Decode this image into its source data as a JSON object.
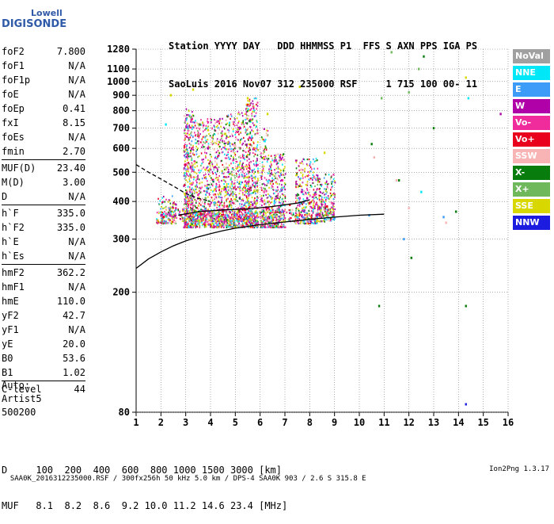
{
  "logo": {
    "line1": "Lowell",
    "line2": "DIGISONDE"
  },
  "header": {
    "line1": "Station YYYY DAY   DDD HHMMSS P1  FFS S AXN PPS IGA PS",
    "line2": "SaoLuis 2016 Nov07 312 235000 RSF     1 715 100 00- 11"
  },
  "params": {
    "group1": [
      {
        "k": "foF2",
        "v": "7.800"
      },
      {
        "k": "foF1",
        "v": "N/A"
      },
      {
        "k": "foF1p",
        "v": "N/A"
      },
      {
        "k": "foE",
        "v": "N/A"
      },
      {
        "k": "foEp",
        "v": "0.41"
      },
      {
        "k": "fxI",
        "v": "8.15"
      },
      {
        "k": "foEs",
        "v": "N/A"
      },
      {
        "k": "fmin",
        "v": "2.70"
      }
    ],
    "group2": [
      {
        "k": "MUF(D)",
        "v": "23.40"
      },
      {
        "k": "M(D)",
        "v": "3.00"
      },
      {
        "k": "D",
        "v": "N/A"
      }
    ],
    "group3": [
      {
        "k": "h`F",
        "v": "335.0"
      },
      {
        "k": "h`F2",
        "v": "335.0"
      },
      {
        "k": "h`E",
        "v": "N/A"
      },
      {
        "k": "h`Es",
        "v": "N/A"
      }
    ],
    "group4": [
      {
        "k": "hmF2",
        "v": "362.2"
      },
      {
        "k": "hmF1",
        "v": "N/A"
      },
      {
        "k": "hmE",
        "v": "110.0"
      },
      {
        "k": "yF2",
        "v": "42.7"
      },
      {
        "k": "yF1",
        "v": "N/A"
      },
      {
        "k": "yE",
        "v": "20.0"
      },
      {
        "k": "B0",
        "v": "53.6"
      },
      {
        "k": "B1",
        "v": "1.02"
      }
    ],
    "group5": [
      {
        "k": "C-level",
        "v": "44"
      }
    ]
  },
  "auto": {
    "line1": "Auto:",
    "line2": "Artist5",
    "line3": "500200"
  },
  "bottom": {
    "d_line": "D     100  200  400  600  800 1000 1500 3000 [km]",
    "muf_line": "MUF   8.1  8.2  8.6  9.2 10.0 11.2 14.6 23.4 [MHz]"
  },
  "footer": {
    "text": "SAA0K_2016312235000.RSF / 300fx256h 50 kHz 5.0 km / DPS-4 SAA0K 903 / 2.6 S 315.8 E",
    "version": "Ion2Png 1.3.17"
  },
  "legend": [
    {
      "label": "NoVal",
      "bg": "#a0a0a0",
      "fg": "#ffffff"
    },
    {
      "label": "NNE",
      "bg": "#00e8f8",
      "fg": "#ffffff"
    },
    {
      "label": "E",
      "bg": "#3c9cf8",
      "fg": "#ffffff"
    },
    {
      "label": "W",
      "bg": "#b000a8",
      "fg": "#ffffff"
    },
    {
      "label": "Vo-",
      "bg": "#f02c9c",
      "fg": "#ffffff"
    },
    {
      "label": "Vo+",
      "bg": "#e8001c",
      "fg": "#ffffff"
    },
    {
      "label": "SSW",
      "bg": "#f8b4b4",
      "fg": "#ffffff"
    },
    {
      "label": "X-",
      "bg": "#087c0c",
      "fg": "#ffffff"
    },
    {
      "label": "X+",
      "bg": "#70b85c",
      "fg": "#ffffff"
    },
    {
      "label": "SSE",
      "bg": "#d8d800",
      "fg": "#ffffff"
    },
    {
      "label": "NNW",
      "bg": "#1c1ce0",
      "fg": "#ffffff"
    }
  ],
  "chart_data": {
    "type": "scatter",
    "xlabel": "",
    "ylabel": "",
    "x_ticks": [
      "1",
      "2",
      "3",
      "4",
      "5",
      "6",
      "7",
      "8",
      "9",
      "10",
      "11",
      "12",
      "13",
      "14",
      "15",
      "16"
    ],
    "y_ticks": [
      "80",
      "200",
      "300",
      "400",
      "500",
      "600",
      "700",
      "800",
      "900",
      "1000",
      "1100",
      "1280"
    ],
    "xlim": [
      1,
      16
    ],
    "ylim": [
      80,
      1280
    ],
    "y_scale": "log",
    "grid": true,
    "series": [
      {
        "name": "NoVal",
        "points": []
      },
      {
        "name": "NNE",
        "points": [
          [
            2.2,
            720
          ],
          [
            3.4,
            360
          ],
          [
            12.5,
            430
          ],
          [
            14.4,
            880
          ]
        ]
      },
      {
        "name": "E",
        "points": [
          [
            3.3,
            350
          ],
          [
            5.5,
            352
          ],
          [
            8.3,
            355
          ],
          [
            8.6,
            350
          ],
          [
            9.0,
            352
          ],
          [
            10.4,
            360
          ],
          [
            11.8,
            300
          ],
          [
            13.4,
            355
          ]
        ]
      },
      {
        "name": "W",
        "points": [
          [
            3.2,
            520
          ],
          [
            3.9,
            600
          ],
          [
            4.6,
            440
          ],
          [
            5.2,
            700
          ],
          [
            5.7,
            390
          ],
          [
            6.8,
            560
          ],
          [
            7.9,
            410
          ],
          [
            8.4,
            380
          ],
          [
            15.7,
            780
          ]
        ]
      },
      {
        "name": "Vo-",
        "points": [
          [
            2.6,
            380
          ],
          [
            3.5,
            420
          ],
          [
            4.4,
            395
          ],
          [
            5.3,
            380
          ],
          [
            6.1,
            400
          ],
          [
            6.9,
            470
          ],
          [
            7.6,
            410
          ],
          [
            8.2,
            420
          ],
          [
            8.9,
            395
          ]
        ]
      },
      {
        "name": "Vo+",
        "points": [
          [
            2.1,
            355
          ],
          [
            2.8,
            360
          ],
          [
            3.6,
            365
          ],
          [
            4.5,
            370
          ],
          [
            5.4,
            375
          ],
          [
            6.3,
            380
          ],
          [
            7.2,
            390
          ],
          [
            8.0,
            395
          ],
          [
            8.7,
            385
          ]
        ]
      },
      {
        "name": "SSW",
        "points": [
          [
            5.0,
            610
          ],
          [
            10.6,
            560
          ],
          [
            11.5,
            470
          ],
          [
            12.0,
            380
          ],
          [
            13.5,
            340
          ]
        ]
      },
      {
        "name": "X-",
        "points": [
          [
            10.5,
            620
          ],
          [
            10.8,
            180
          ],
          [
            11.6,
            470
          ],
          [
            12.1,
            260
          ],
          [
            12.6,
            1210
          ],
          [
            13.0,
            700
          ],
          [
            13.9,
            370
          ],
          [
            14.3,
            180
          ]
        ]
      },
      {
        "name": "X+",
        "points": [
          [
            3.8,
            410
          ],
          [
            4.9,
            430
          ],
          [
            6.2,
            440
          ],
          [
            10.9,
            880
          ],
          [
            11.3,
            1250
          ],
          [
            12.0,
            920
          ],
          [
            12.4,
            1100
          ]
        ]
      },
      {
        "name": "SSE",
        "points": [
          [
            2.4,
            900
          ],
          [
            3.3,
            940
          ],
          [
            3.9,
            690
          ],
          [
            4.6,
            670
          ],
          [
            5.5,
            880
          ],
          [
            6.3,
            780
          ],
          [
            7.6,
            960
          ],
          [
            8.6,
            580
          ],
          [
            14.3,
            1030
          ]
        ]
      },
      {
        "name": "NNW",
        "points": [
          [
            14.3,
            85
          ]
        ]
      }
    ],
    "trace_lines": [
      {
        "name": "profile",
        "style": "solid",
        "points": [
          [
            1.0,
            240
          ],
          [
            1.5,
            258
          ],
          [
            2.0,
            272
          ],
          [
            2.5,
            285
          ],
          [
            3.0,
            296
          ],
          [
            3.5,
            305
          ],
          [
            4.0,
            313
          ],
          [
            4.5,
            320
          ],
          [
            5.0,
            326
          ],
          [
            6.0,
            335
          ],
          [
            7.0,
            342
          ],
          [
            8.0,
            349
          ],
          [
            9.0,
            355
          ],
          [
            10.0,
            360
          ],
          [
            11.0,
            363
          ]
        ]
      },
      {
        "name": "o-trace",
        "style": "solid",
        "points": [
          [
            2.7,
            360
          ],
          [
            3.5,
            370
          ],
          [
            4.5,
            375
          ],
          [
            5.5,
            378
          ],
          [
            6.5,
            385
          ],
          [
            7.5,
            395
          ],
          [
            8.0,
            405
          ]
        ]
      },
      {
        "name": "extrap",
        "style": "dashed",
        "points": [
          [
            1.0,
            530
          ],
          [
            1.5,
            500
          ],
          [
            2.0,
            475
          ],
          [
            2.5,
            450
          ],
          [
            3.0,
            425
          ],
          [
            3.5,
            410
          ],
          [
            4.0,
            400
          ]
        ]
      }
    ]
  }
}
